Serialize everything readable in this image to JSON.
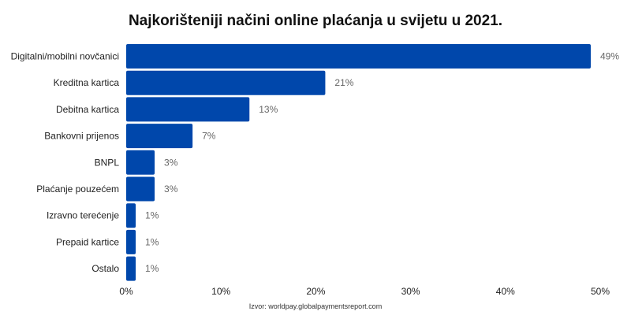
{
  "chart_data": {
    "type": "bar",
    "orientation": "horizontal",
    "title": "Najkorišteniji načini online plaćanja u svijetu u 2021.",
    "categories": [
      "Digitalni/mobilni novčanici",
      "Kreditna kartica",
      "Debitna kartica",
      "Bankovni prijenos",
      "BNPL",
      "Plaćanje pouzećem",
      "Izravno terećenje",
      "Prepaid kartice",
      "Ostalo"
    ],
    "values": [
      49,
      21,
      13,
      7,
      3,
      3,
      1,
      1,
      1
    ],
    "value_labels": [
      "49%",
      "21%",
      "13%",
      "7%",
      "3%",
      "3%",
      "1%",
      "1%",
      "1%"
    ],
    "xlim": [
      0,
      50
    ],
    "xticks": [
      0,
      10,
      20,
      30,
      40,
      50
    ],
    "xtick_labels": [
      "0%",
      "10%",
      "20%",
      "30%",
      "40%",
      "50%"
    ],
    "xlabel": "",
    "ylabel": "",
    "grid": false,
    "bar_color": "#0047AB",
    "source": "Izvor: worldpay.globalpaymentsreport.com"
  }
}
